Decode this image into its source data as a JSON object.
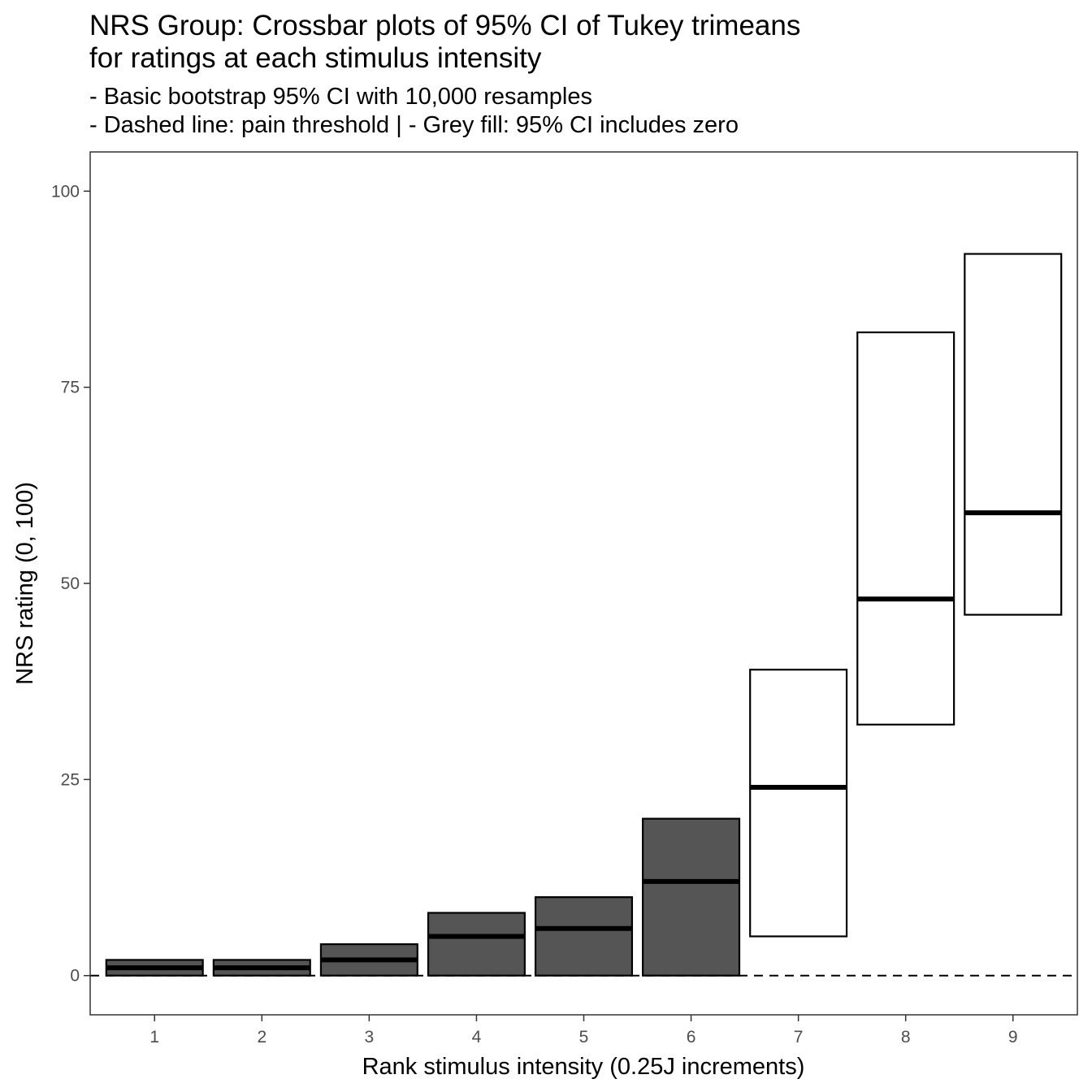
{
  "chart_data": {
    "type": "crossbar",
    "title_lines": [
      "NRS Group: Crossbar plots of 95% CI of Tukey trimeans",
      "for ratings at each stimulus intensity"
    ],
    "subtitle_lines": [
      "- Basic bootstrap 95% CI with 10,000 resamples",
      "- Dashed line: pain threshold | - Grey fill: 95% CI includes zero"
    ],
    "xlabel": "Rank stimulus intensity (0.25J increments)",
    "ylabel": "NRS rating (0, 100)",
    "ylim": [
      -5,
      105
    ],
    "y_ticks": [
      0,
      25,
      50,
      75,
      100
    ],
    "categories": [
      "1",
      "2",
      "3",
      "4",
      "5",
      "6",
      "7",
      "8",
      "9"
    ],
    "trimean": [
      1,
      1,
      2,
      5,
      6,
      12,
      24,
      48,
      59
    ],
    "ci_lower": [
      0,
      0,
      0,
      0,
      0,
      0,
      5,
      32,
      46
    ],
    "ci_upper": [
      2,
      2,
      4,
      8,
      10,
      20,
      39,
      82,
      92
    ],
    "ci_includes_zero": [
      true,
      true,
      true,
      true,
      true,
      true,
      false,
      false,
      false
    ],
    "threshold_line": 0,
    "fill_colors": {
      "includes_zero": "#555555",
      "excludes_zero": "#ffffff"
    },
    "grid": false
  }
}
